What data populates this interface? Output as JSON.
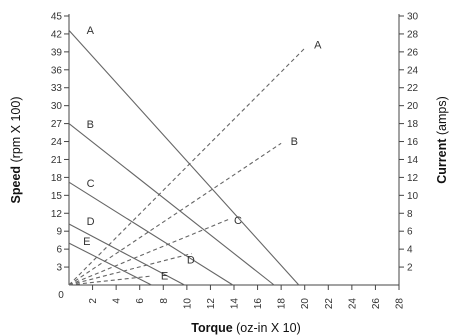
{
  "chart_data": {
    "type": "line",
    "title": "",
    "xlabel": {
      "bold": "Torque",
      "rest": " (oz-in X 10)"
    },
    "ylabel_left": {
      "bold": "Speed",
      "rest": " (rpm X 100)"
    },
    "ylabel_right": {
      "bold": "Current",
      "rest": " (amps)"
    },
    "x_axis": {
      "range": [
        0,
        28
      ],
      "ticks": [
        0,
        2,
        4,
        6,
        8,
        10,
        12,
        14,
        16,
        18,
        20,
        22,
        24,
        26,
        28
      ]
    },
    "y_left": {
      "range": [
        0,
        45
      ],
      "ticks": [
        3,
        6,
        9,
        12,
        15,
        18,
        21,
        24,
        27,
        30,
        33,
        36,
        39,
        42,
        45
      ]
    },
    "y_right": {
      "range": [
        0,
        30
      ],
      "ticks": [
        2,
        4,
        6,
        8,
        10,
        12,
        14,
        16,
        18,
        20,
        22,
        24,
        26,
        28,
        30
      ]
    },
    "grid": false,
    "speed_series": [
      {
        "name": "A",
        "points": [
          [
            0,
            42.6
          ],
          [
            19.5,
            0
          ]
        ]
      },
      {
        "name": "B",
        "points": [
          [
            0,
            27.0
          ],
          [
            17.4,
            0
          ]
        ]
      },
      {
        "name": "C",
        "points": [
          [
            0,
            17.2
          ],
          [
            13.9,
            0
          ]
        ]
      },
      {
        "name": "D",
        "points": [
          [
            0,
            10.2
          ],
          [
            9.8,
            0
          ]
        ]
      },
      {
        "name": "E",
        "points": [
          [
            0,
            7.0
          ],
          [
            7.0,
            0
          ]
        ]
      }
    ],
    "current_series": [
      {
        "name": "A",
        "points": [
          [
            0,
            0
          ],
          [
            20,
            26.4
          ]
        ]
      },
      {
        "name": "B",
        "points": [
          [
            0,
            0
          ],
          [
            18,
            15.8
          ]
        ]
      },
      {
        "name": "C",
        "points": [
          [
            0,
            0
          ],
          [
            13.7,
            7.4
          ]
        ]
      },
      {
        "name": "D",
        "points": [
          [
            0,
            0
          ],
          [
            10.4,
            3.5
          ]
        ]
      },
      {
        "name": "E",
        "points": [
          [
            0,
            0
          ],
          [
            7.0,
            1.0
          ]
        ]
      }
    ],
    "speed_label_points": [
      [
        1.5,
        42.0
      ],
      [
        1.5,
        26.3
      ],
      [
        1.5,
        16.4
      ],
      [
        1.5,
        10.0
      ],
      [
        1.2,
        6.7
      ]
    ],
    "current_label_points": [
      [
        20.8,
        26.4
      ],
      [
        18.8,
        15.6
      ],
      [
        14.0,
        6.8
      ],
      [
        10.0,
        2.4
      ],
      [
        7.8,
        0.6
      ]
    ]
  }
}
